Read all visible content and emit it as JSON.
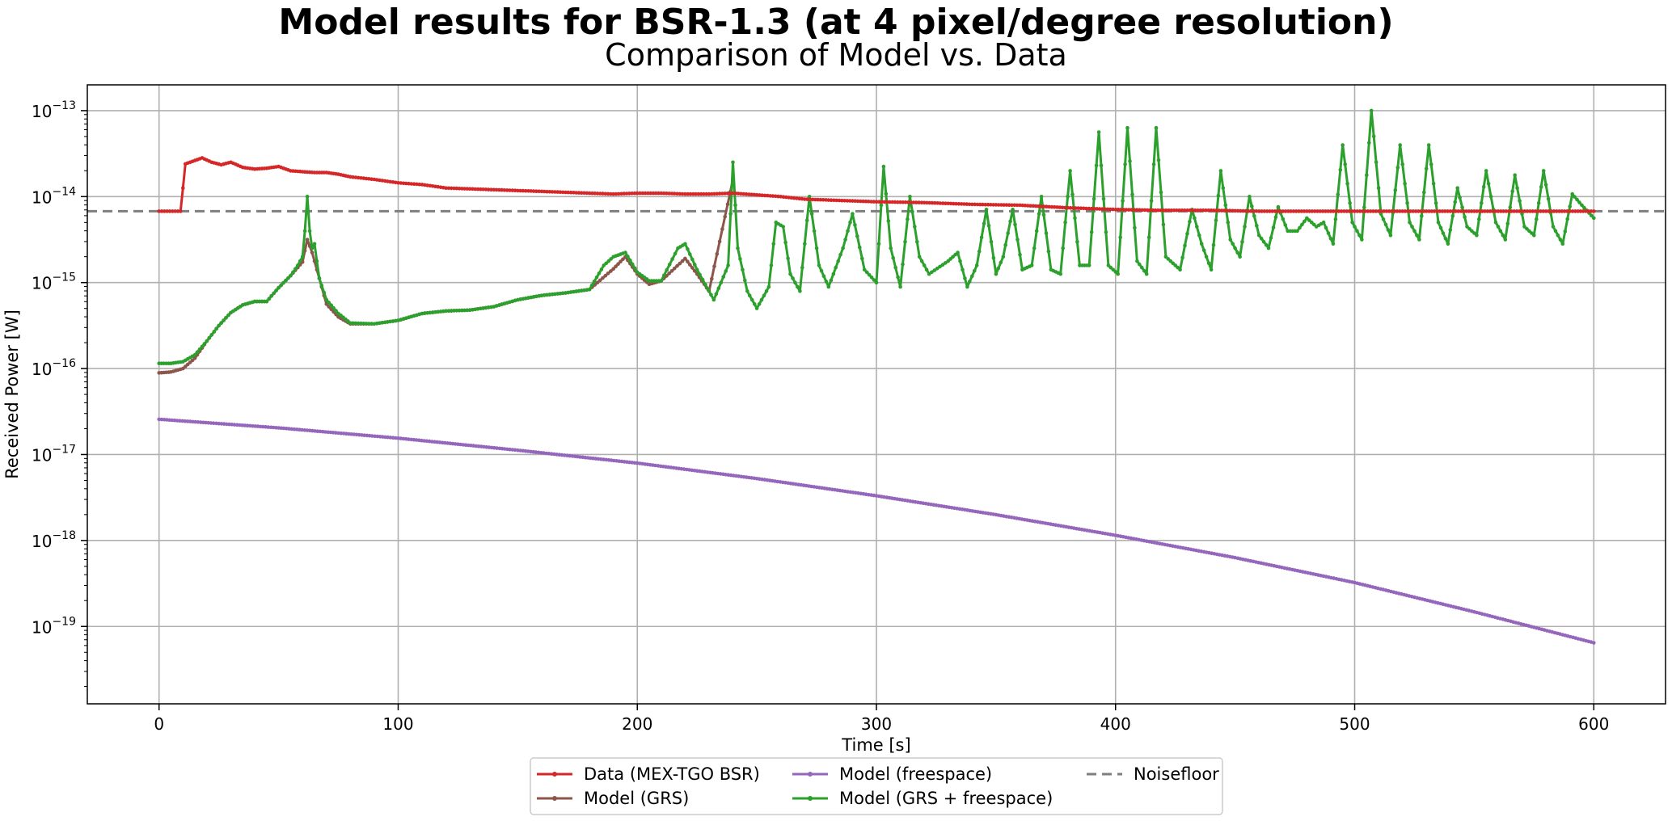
{
  "chart_data": {
    "type": "line",
    "title": "Model results for BSR-1.3 (at 4 pixel/degree resolution)",
    "subtitle": "Comparison of Model vs. Data",
    "xlabel": "Time [s]",
    "ylabel": "Received Power [W]",
    "xlim": [
      -30,
      630
    ],
    "ylim_log10": [
      -19.9,
      -12.7
    ],
    "yscale": "log",
    "grid": true,
    "x_ticks": [
      0,
      100,
      200,
      300,
      400,
      500,
      600
    ],
    "x_tick_labels": [
      "0",
      "100",
      "200",
      "300",
      "400",
      "500",
      "600"
    ],
    "y_ticks": [
      -19,
      -18,
      -17,
      -16,
      -15,
      -14,
      -13
    ],
    "y_tick_labels": [
      {
        "base": "10",
        "exp": "−19"
      },
      {
        "base": "10",
        "exp": "−18"
      },
      {
        "base": "10",
        "exp": "−17"
      },
      {
        "base": "10",
        "exp": "−16"
      },
      {
        "base": "10",
        "exp": "−15"
      },
      {
        "base": "10",
        "exp": "−14"
      },
      {
        "base": "10",
        "exp": "−13"
      }
    ],
    "legend_position": "bottom-center",
    "series": [
      {
        "name": "Data (MEX-TGO BSR)",
        "color": "#d62728",
        "style": "solid-marker",
        "log10_points": [
          [
            0,
            -14.17
          ],
          [
            9,
            -14.17
          ],
          [
            10,
            -13.9
          ],
          [
            11,
            -13.62
          ],
          [
            15,
            -13.58
          ],
          [
            18,
            -13.55
          ],
          [
            22,
            -13.6
          ],
          [
            26,
            -13.63
          ],
          [
            30,
            -13.6
          ],
          [
            35,
            -13.66
          ],
          [
            40,
            -13.68
          ],
          [
            45,
            -13.67
          ],
          [
            50,
            -13.65
          ],
          [
            55,
            -13.7
          ],
          [
            60,
            -13.71
          ],
          [
            65,
            -13.72
          ],
          [
            70,
            -13.72
          ],
          [
            75,
            -13.74
          ],
          [
            80,
            -13.77
          ],
          [
            90,
            -13.8
          ],
          [
            100,
            -13.84
          ],
          [
            110,
            -13.86
          ],
          [
            120,
            -13.9
          ],
          [
            130,
            -13.91
          ],
          [
            140,
            -13.92
          ],
          [
            150,
            -13.93
          ],
          [
            160,
            -13.94
          ],
          [
            170,
            -13.95
          ],
          [
            180,
            -13.96
          ],
          [
            190,
            -13.97
          ],
          [
            200,
            -13.96
          ],
          [
            210,
            -13.96
          ],
          [
            220,
            -13.97
          ],
          [
            230,
            -13.97
          ],
          [
            240,
            -13.96
          ],
          [
            250,
            -13.98
          ],
          [
            260,
            -14.0
          ],
          [
            270,
            -14.03
          ],
          [
            280,
            -14.04
          ],
          [
            290,
            -14.05
          ],
          [
            300,
            -14.06
          ],
          [
            320,
            -14.07
          ],
          [
            340,
            -14.09
          ],
          [
            360,
            -14.1
          ],
          [
            380,
            -14.13
          ],
          [
            400,
            -14.15
          ],
          [
            420,
            -14.16
          ],
          [
            440,
            -14.16
          ],
          [
            460,
            -14.17
          ],
          [
            480,
            -14.17
          ],
          [
            500,
            -14.17
          ],
          [
            520,
            -14.17
          ],
          [
            540,
            -14.17
          ],
          [
            560,
            -14.17
          ],
          [
            580,
            -14.17
          ],
          [
            600,
            -14.17
          ]
        ]
      },
      {
        "name": "Model (GRS)",
        "color": "#8c564b",
        "style": "solid-marker",
        "log10_points": [
          [
            0,
            -16.05
          ],
          [
            5,
            -16.04
          ],
          [
            10,
            -16.0
          ],
          [
            15,
            -15.88
          ],
          [
            20,
            -15.68
          ],
          [
            25,
            -15.5
          ],
          [
            30,
            -15.35
          ],
          [
            35,
            -15.26
          ],
          [
            40,
            -15.22
          ],
          [
            45,
            -15.22
          ],
          [
            50,
            -15.06
          ],
          [
            55,
            -14.92
          ],
          [
            60,
            -14.76
          ],
          [
            62,
            -14.5
          ],
          [
            64,
            -14.65
          ],
          [
            67,
            -14.95
          ],
          [
            70,
            -15.25
          ],
          [
            75,
            -15.4
          ],
          [
            80,
            -15.48
          ],
          [
            90,
            -15.48
          ],
          [
            100,
            -15.44
          ],
          [
            110,
            -15.36
          ],
          [
            120,
            -15.33
          ],
          [
            130,
            -15.32
          ],
          [
            140,
            -15.28
          ],
          [
            150,
            -15.2
          ],
          [
            160,
            -15.15
          ],
          [
            170,
            -15.12
          ],
          [
            180,
            -15.08
          ],
          [
            190,
            -14.84
          ],
          [
            195,
            -14.7
          ],
          [
            200,
            -14.9
          ],
          [
            205,
            -15.02
          ],
          [
            210,
            -14.98
          ],
          [
            220,
            -14.72
          ],
          [
            225,
            -14.9
          ],
          [
            230,
            -15.1
          ],
          [
            240,
            -13.8
          ]
        ]
      },
      {
        "name": "Model (freespace)",
        "color": "#9467bd",
        "style": "solid-marker",
        "log10_points": [
          [
            0,
            -16.59
          ],
          [
            50,
            -16.69
          ],
          [
            100,
            -16.81
          ],
          [
            150,
            -16.95
          ],
          [
            200,
            -17.1
          ],
          [
            250,
            -17.28
          ],
          [
            300,
            -17.48
          ],
          [
            350,
            -17.7
          ],
          [
            400,
            -17.94
          ],
          [
            450,
            -18.2
          ],
          [
            500,
            -18.49
          ],
          [
            550,
            -18.83
          ],
          [
            600,
            -19.19
          ]
        ]
      },
      {
        "name": "Model (GRS + freespace)",
        "color": "#2ca02c",
        "style": "solid-marker",
        "log10_points": [
          [
            0,
            -15.94
          ],
          [
            5,
            -15.94
          ],
          [
            10,
            -15.92
          ],
          [
            15,
            -15.84
          ],
          [
            20,
            -15.68
          ],
          [
            25,
            -15.5
          ],
          [
            30,
            -15.35
          ],
          [
            35,
            -15.26
          ],
          [
            40,
            -15.22
          ],
          [
            45,
            -15.22
          ],
          [
            50,
            -15.06
          ],
          [
            55,
            -14.92
          ],
          [
            58,
            -14.8
          ],
          [
            60,
            -14.7
          ],
          [
            61,
            -14.4
          ],
          [
            62,
            -14.0
          ],
          [
            63,
            -14.4
          ],
          [
            64,
            -14.6
          ],
          [
            65,
            -14.55
          ],
          [
            67,
            -14.95
          ],
          [
            70,
            -15.2
          ],
          [
            75,
            -15.36
          ],
          [
            80,
            -15.47
          ],
          [
            90,
            -15.48
          ],
          [
            100,
            -15.44
          ],
          [
            110,
            -15.36
          ],
          [
            120,
            -15.33
          ],
          [
            130,
            -15.32
          ],
          [
            140,
            -15.28
          ],
          [
            150,
            -15.2
          ],
          [
            160,
            -15.15
          ],
          [
            170,
            -15.12
          ],
          [
            180,
            -15.08
          ],
          [
            186,
            -14.8
          ],
          [
            190,
            -14.7
          ],
          [
            195,
            -14.65
          ],
          [
            200,
            -14.88
          ],
          [
            205,
            -14.98
          ],
          [
            210,
            -14.98
          ],
          [
            217,
            -14.6
          ],
          [
            220,
            -14.55
          ],
          [
            225,
            -14.85
          ],
          [
            232,
            -15.2
          ],
          [
            238,
            -14.8
          ],
          [
            240,
            -13.6
          ],
          [
            242,
            -14.6
          ],
          [
            246,
            -15.1
          ],
          [
            250,
            -15.3
          ],
          [
            255,
            -15.05
          ],
          [
            258,
            -14.3
          ],
          [
            261,
            -14.35
          ],
          [
            264,
            -14.9
          ],
          [
            268,
            -15.1
          ],
          [
            272,
            -14.0
          ],
          [
            276,
            -14.8
          ],
          [
            280,
            -15.05
          ],
          [
            286,
            -14.6
          ],
          [
            290,
            -14.2
          ],
          [
            295,
            -14.85
          ],
          [
            300,
            -15.0
          ],
          [
            303,
            -13.65
          ],
          [
            306,
            -14.6
          ],
          [
            310,
            -15.05
          ],
          [
            314,
            -14.0
          ],
          [
            318,
            -14.7
          ],
          [
            322,
            -14.9
          ],
          [
            330,
            -14.75
          ],
          [
            334,
            -14.65
          ],
          [
            338,
            -15.05
          ],
          [
            342,
            -14.8
          ],
          [
            346,
            -14.15
          ],
          [
            350,
            -14.9
          ],
          [
            353,
            -14.7
          ],
          [
            357,
            -14.15
          ],
          [
            361,
            -14.85
          ],
          [
            365,
            -14.8
          ],
          [
            369,
            -14.0
          ],
          [
            373,
            -14.85
          ],
          [
            377,
            -14.9
          ],
          [
            381,
            -13.7
          ],
          [
            385,
            -14.8
          ],
          [
            389,
            -14.8
          ],
          [
            393,
            -13.25
          ],
          [
            397,
            -14.8
          ],
          [
            401,
            -14.9
          ],
          [
            405,
            -13.2
          ],
          [
            409,
            -14.75
          ],
          [
            413,
            -14.9
          ],
          [
            417,
            -13.2
          ],
          [
            421,
            -14.7
          ],
          [
            427,
            -14.85
          ],
          [
            432,
            -14.15
          ],
          [
            436,
            -14.55
          ],
          [
            440,
            -14.85
          ],
          [
            444,
            -13.7
          ],
          [
            448,
            -14.5
          ],
          [
            452,
            -14.7
          ],
          [
            456,
            -14.0
          ],
          [
            460,
            -14.45
          ],
          [
            464,
            -14.6
          ],
          [
            468,
            -14.12
          ],
          [
            472,
            -14.4
          ],
          [
            476,
            -14.4
          ],
          [
            480,
            -14.25
          ],
          [
            484,
            -14.35
          ],
          [
            487,
            -14.3
          ],
          [
            491,
            -14.55
          ],
          [
            495,
            -13.4
          ],
          [
            499,
            -14.3
          ],
          [
            503,
            -14.5
          ],
          [
            507,
            -13.0
          ],
          [
            511,
            -14.2
          ],
          [
            515,
            -14.45
          ],
          [
            519,
            -13.4
          ],
          [
            523,
            -14.3
          ],
          [
            527,
            -14.5
          ],
          [
            531,
            -13.4
          ],
          [
            535,
            -14.3
          ],
          [
            539,
            -14.55
          ],
          [
            543,
            -13.9
          ],
          [
            547,
            -14.35
          ],
          [
            551,
            -14.45
          ],
          [
            555,
            -13.7
          ],
          [
            559,
            -14.3
          ],
          [
            563,
            -14.5
          ],
          [
            567,
            -13.75
          ],
          [
            571,
            -14.35
          ],
          [
            575,
            -14.45
          ],
          [
            579,
            -13.7
          ],
          [
            583,
            -14.35
          ],
          [
            587,
            -14.55
          ],
          [
            591,
            -13.97
          ],
          [
            595,
            -14.1
          ],
          [
            600,
            -14.25
          ]
        ]
      },
      {
        "name": "Noisefloor",
        "color": "#7f7f7f",
        "style": "dashed",
        "log10_points": [
          [
            -30,
            -14.17
          ],
          [
            630,
            -14.17
          ]
        ]
      }
    ]
  }
}
